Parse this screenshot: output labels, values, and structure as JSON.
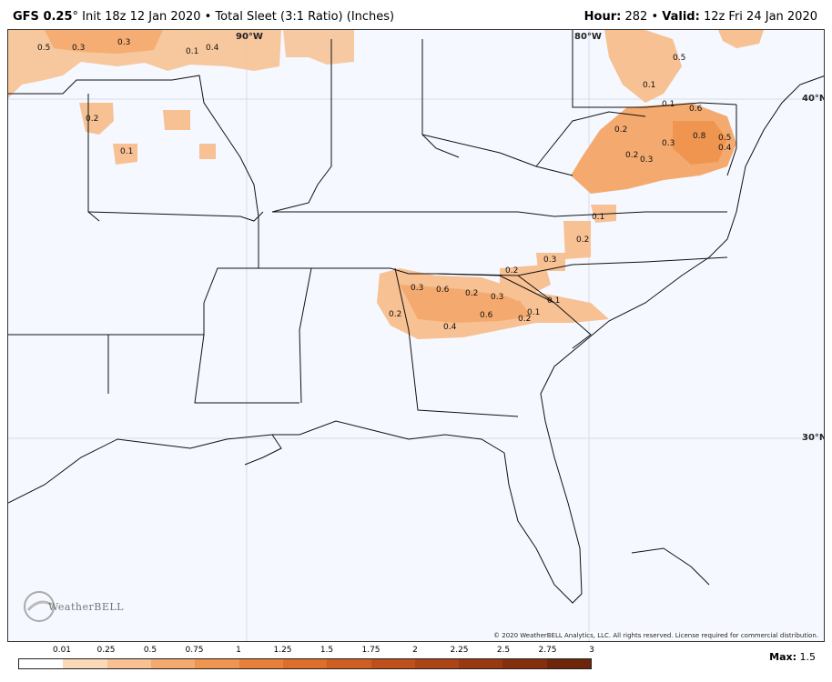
{
  "header": {
    "model": "GFS 0.25",
    "degree": "°",
    "init": "Init 18z 12 Jan 2020",
    "separator": "•",
    "product": "Total Sleet (3:1 Ratio) (Inches)",
    "hour_label": "Hour:",
    "hour_value": "282",
    "valid_label": "Valid:",
    "valid_value": "12z Fri 24 Jan 2020"
  },
  "map": {
    "lon_labels": [
      "90°W",
      "80°W"
    ],
    "lat_labels": [
      "40°N",
      "30°N"
    ],
    "value_labels": [
      "0.5",
      "0.3",
      "0.3",
      "0.1",
      "0.4",
      "0.2",
      "0.1",
      "0.5",
      "0.1",
      "0.1",
      "0.6",
      "0.2",
      "0.3",
      "0.8",
      "0.5",
      "0.4",
      "0.2",
      "0.3",
      "0.1",
      "0.2",
      "0.3",
      "0.2",
      "0.3",
      "0.6",
      "0.2",
      "0.3",
      "0.1",
      "0.2",
      "0.6",
      "0.4",
      "0.2",
      "0.1"
    ],
    "copyright": "© 2020 WeatherBELL Analytics, LLC. All rights reserved. License required for commercial distribution.",
    "logo_text": "WeatherBELL"
  },
  "legend": {
    "ticks": [
      "0.01",
      "0.25",
      "0.5",
      "0.75",
      "1",
      "1.25",
      "1.5",
      "1.75",
      "2",
      "2.25",
      "2.5",
      "2.75",
      "3"
    ],
    "colors": [
      "#ffffff",
      "#fbd9b8",
      "#f7c193",
      "#f4aa6e",
      "#f09550",
      "#e9803a",
      "#dd6e2b",
      "#cf5e22",
      "#bf501b",
      "#ad4416",
      "#993912",
      "#852f0e",
      "#6e260b"
    ],
    "max_label": "Max:",
    "max_value": "1.5"
  }
}
